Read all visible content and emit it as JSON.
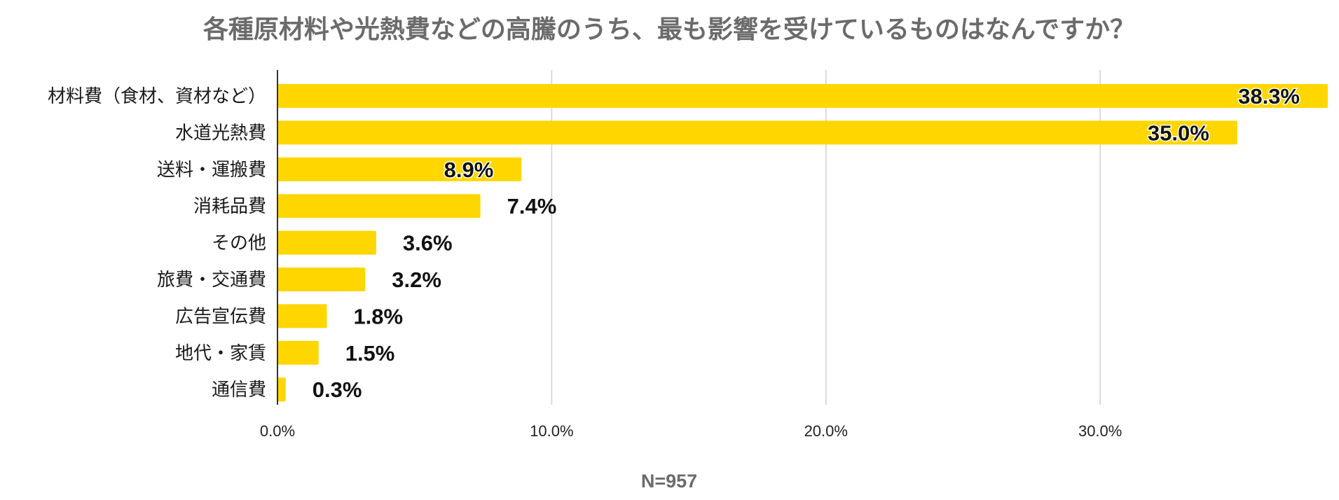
{
  "chart_data": {
    "type": "bar",
    "orientation": "horizontal",
    "title": "各種原材料や光熱費などの高騰のうち、最も影響を受けているものはなんですか？",
    "categories": [
      "材料費（食材、資材など）",
      "水道光熱費",
      "送料・運搬費",
      "消耗品費",
      "その他",
      "旅費・交通費",
      "広告宣伝費",
      "地代・家賃",
      "通信費"
    ],
    "values": [
      38.3,
      35.0,
      8.9,
      7.4,
      3.6,
      3.2,
      1.8,
      1.5,
      0.3
    ],
    "value_labels": [
      "38.3%",
      "35.0%",
      "8.9%",
      "7.4%",
      "3.6%",
      "3.2%",
      "1.8%",
      "1.5%",
      "0.3%"
    ],
    "x_ticks": [
      0,
      10,
      20,
      30
    ],
    "x_tick_labels": [
      "0.0%",
      "10.0%",
      "20.0%",
      "30.0%"
    ],
    "xlim": [
      0,
      38.3
    ],
    "grid": true,
    "bar_color": "#FFD600",
    "note": "N=957"
  }
}
